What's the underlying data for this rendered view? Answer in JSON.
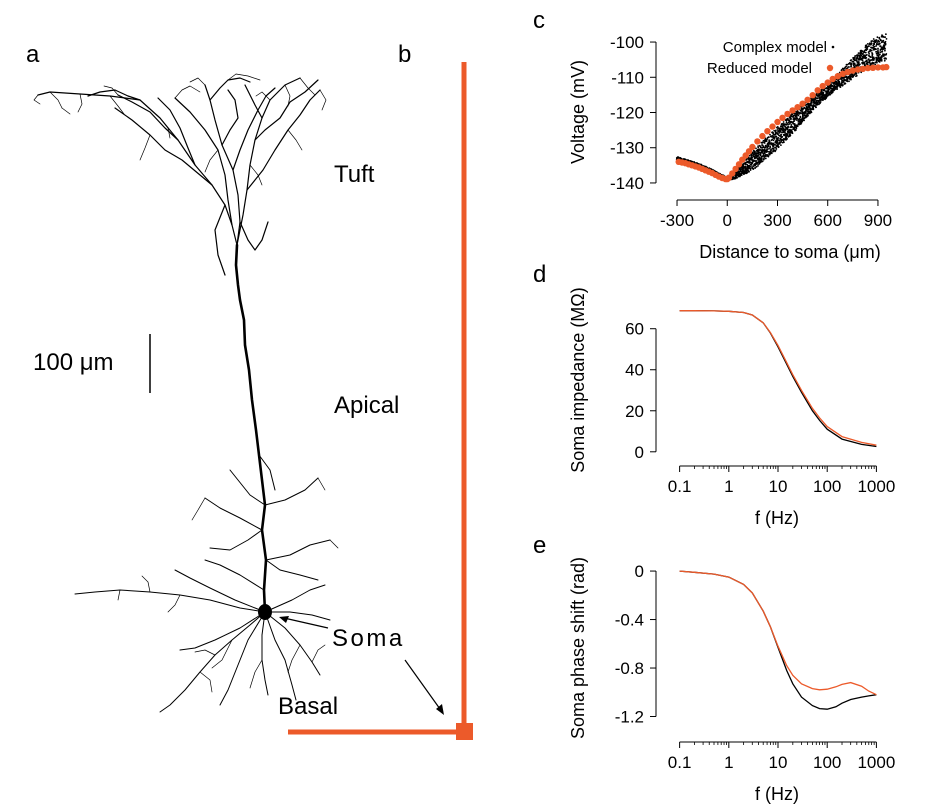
{
  "panels": {
    "a": "a",
    "b": "b",
    "c": "c",
    "d": "d",
    "e": "e"
  },
  "neuron": {
    "scale_bar_label": "100 μm",
    "region_labels": {
      "tuft": "Tuft",
      "apical": "Apical",
      "soma": "Soma",
      "basal": "Basal"
    }
  },
  "colors": {
    "complex": "#000000",
    "reduced": "#ec5a2a",
    "axis": "#000000"
  },
  "chart_data": [
    {
      "id": "c",
      "type": "scatter",
      "xlabel": "Distance to soma (μm)",
      "ylabel": "Voltage (mV)",
      "xlim": [
        -330,
        960
      ],
      "ylim": [
        -142,
        -98
      ],
      "xticks": [
        -300,
        0,
        300,
        600,
        900
      ],
      "xtick_labels": [
        "-300",
        "0",
        "300",
        "600",
        "900"
      ],
      "yticks": [
        -100,
        -110,
        -120,
        -130,
        -140
      ],
      "ytick_labels": [
        "-100",
        "-110",
        "-120",
        "-130",
        "-140"
      ],
      "legend": [
        "Complex model",
        "Reduced model"
      ],
      "legend_position": "top-right",
      "series": [
        {
          "name": "Reduced model",
          "x": [
            -290,
            -270,
            -250,
            -230,
            -210,
            -190,
            -170,
            -150,
            -130,
            -110,
            -90,
            -70,
            -50,
            -30,
            -10,
            0,
            10,
            30,
            50,
            70,
            90,
            110,
            130,
            150,
            180,
            210,
            240,
            270,
            300,
            330,
            360,
            390,
            420,
            450,
            480,
            510,
            540,
            570,
            600,
            630,
            660,
            690,
            720,
            750,
            780,
            810,
            840,
            870,
            900,
            930,
            950
          ],
          "y": [
            -134,
            -134.2,
            -134.4,
            -134.7,
            -135,
            -135.3,
            -135.6,
            -136,
            -136.4,
            -136.8,
            -137.2,
            -137.7,
            -138.2,
            -138.6,
            -138.9,
            -138.9,
            -138.5,
            -137.3,
            -136,
            -134.7,
            -133.4,
            -132.2,
            -131,
            -129.8,
            -128.2,
            -126.7,
            -125.3,
            -124,
            -122.7,
            -121.5,
            -120.4,
            -119.4,
            -118.5,
            -117.5,
            -116.4,
            -115.1,
            -113.7,
            -112.5,
            -111.5,
            -110.5,
            -109.7,
            -109,
            -108.5,
            -108.1,
            -107.8,
            -107.6,
            -107.4,
            -107.3,
            -107.2,
            -107.2,
            -107.1
          ]
        },
        {
          "name": "Complex model",
          "x": [
            -300,
            -250,
            -200,
            -150,
            -100,
            -50,
            0,
            50,
            100,
            150,
            200,
            250,
            300,
            350,
            400,
            450,
            500,
            550,
            600,
            650,
            700,
            750,
            800,
            850,
            900,
            950
          ],
          "y": [
            -133,
            -133.7,
            -134.5,
            -135.4,
            -136.5,
            -137.8,
            -138.9,
            -137.7,
            -135.8,
            -133.8,
            -131.6,
            -129.4,
            -127.2,
            -124.9,
            -122.6,
            -120.3,
            -118,
            -115.8,
            -113.6,
            -111.5,
            -109.5,
            -107.4,
            -105.5,
            -103.6,
            -102.2,
            -101.5
          ],
          "spread": [
            0.6,
            0.6,
            0.7,
            0.7,
            0.8,
            0.8,
            0.6,
            1.6,
            2.6,
            3.6,
            4.2,
            4.4,
            4.5,
            4.4,
            4.0,
            3.5,
            3.0,
            2.6,
            2.6,
            3.0,
            3.6,
            4.2,
            4.8,
            5.2,
            5.4,
            5.5
          ]
        }
      ]
    },
    {
      "id": "d",
      "type": "line",
      "xscale": "log",
      "xlabel": "f (Hz)",
      "ylabel": "Soma impedance (MΩ)",
      "xlim": [
        0.07,
        1300
      ],
      "ylim": [
        -4,
        74
      ],
      "xticks": [
        0.1,
        1,
        10,
        100,
        1000
      ],
      "xtick_labels": [
        "0.1",
        "1",
        "10",
        "100",
        "1000"
      ],
      "yticks": [
        0,
        20,
        40,
        60
      ],
      "ytick_labels": [
        "0",
        "20",
        "40",
        "60"
      ],
      "series": [
        {
          "name": "Complex model",
          "x": [
            0.1,
            0.2,
            0.5,
            1,
            2,
            3,
            5,
            7,
            10,
            15,
            20,
            30,
            50,
            70,
            100,
            200,
            500,
            1000
          ],
          "y": [
            68.8,
            68.8,
            68.7,
            68.5,
            67.9,
            66.7,
            62.9,
            57.9,
            51.2,
            42.7,
            36.7,
            29,
            20,
            15.3,
            11,
            6.2,
            3.6,
            2.6
          ]
        },
        {
          "name": "Reduced model",
          "x": [
            0.1,
            0.2,
            0.5,
            1,
            2,
            3,
            5,
            7,
            10,
            15,
            20,
            30,
            50,
            70,
            100,
            200,
            500,
            1000
          ],
          "y": [
            68.8,
            68.8,
            68.7,
            68.5,
            67.9,
            66.7,
            62.9,
            58.1,
            51.8,
            43.5,
            37.6,
            30,
            21.2,
            16.5,
            12.3,
            7.4,
            4.6,
            3.2
          ]
        }
      ]
    },
    {
      "id": "e",
      "type": "line",
      "xscale": "log",
      "xlabel": "f (Hz)",
      "ylabel": "Soma phase shift (rad)",
      "xlim": [
        0.07,
        1300
      ],
      "ylim": [
        -1.27,
        0.05
      ],
      "xticks": [
        0.1,
        1,
        10,
        100,
        1000
      ],
      "xtick_labels": [
        "0.1",
        "1",
        "10",
        "100",
        "1000"
      ],
      "yticks": [
        0,
        -0.4,
        -0.8,
        -1.2
      ],
      "ytick_labels": [
        "0",
        "-0.4",
        "-0.8",
        "-1.2"
      ],
      "series": [
        {
          "name": "Complex model",
          "x": [
            0.1,
            0.2,
            0.5,
            1,
            2,
            3,
            5,
            7,
            10,
            15,
            20,
            30,
            50,
            70,
            100,
            150,
            200,
            300,
            500,
            700,
            1000
          ],
          "y": [
            0,
            -0.01,
            -0.025,
            -0.05,
            -0.11,
            -0.18,
            -0.33,
            -0.46,
            -0.63,
            -0.82,
            -0.93,
            -1.04,
            -1.11,
            -1.135,
            -1.14,
            -1.12,
            -1.09,
            -1.06,
            -1.04,
            -1.03,
            -1.02
          ]
        },
        {
          "name": "Reduced model",
          "x": [
            0.1,
            0.2,
            0.5,
            1,
            2,
            3,
            5,
            7,
            10,
            15,
            20,
            30,
            50,
            70,
            100,
            150,
            200,
            300,
            500,
            700,
            1000
          ],
          "y": [
            0,
            -0.01,
            -0.025,
            -0.05,
            -0.11,
            -0.18,
            -0.33,
            -0.46,
            -0.62,
            -0.78,
            -0.86,
            -0.93,
            -0.97,
            -0.98,
            -0.975,
            -0.955,
            -0.935,
            -0.92,
            -0.95,
            -0.99,
            -1.02
          ]
        }
      ]
    }
  ]
}
